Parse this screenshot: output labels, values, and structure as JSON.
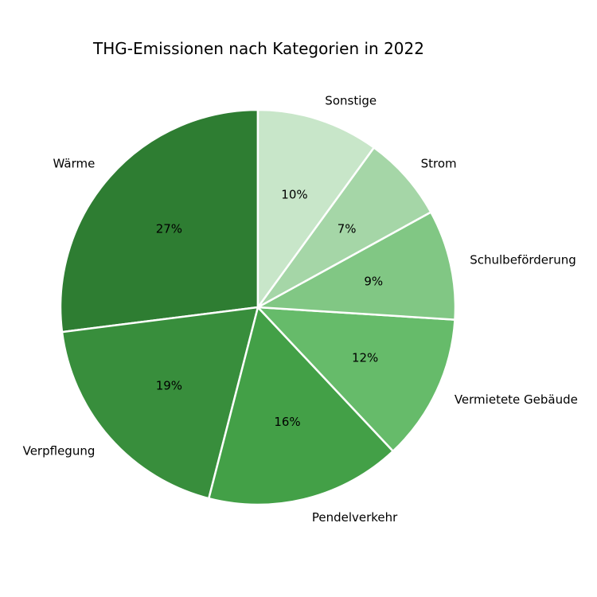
{
  "chart_data": {
    "type": "pie",
    "title": "THG-Emissionen nach Kategorien in 2022",
    "categories": [
      "Wärme",
      "Verpflegung",
      "Pendelverkehr",
      "Vermietete Gebäude",
      "Schulbeförderung",
      "Strom",
      "Sonstige"
    ],
    "values": [
      27,
      19,
      16,
      12,
      9,
      7,
      10
    ],
    "value_labels": [
      "27%",
      "19%",
      "16%",
      "12%",
      "9%",
      "7%",
      "10%"
    ],
    "colors": [
      "#2e7d32",
      "#388e3c",
      "#43a047",
      "#66bb6a",
      "#81c784",
      "#a5d6a7",
      "#c8e6c9"
    ],
    "start_angle_deg": 90,
    "direction": "counterclockwise",
    "legend": "none",
    "xlabel": "",
    "ylabel": ""
  },
  "title": "THG-Emissionen nach Kategorien in 2022"
}
